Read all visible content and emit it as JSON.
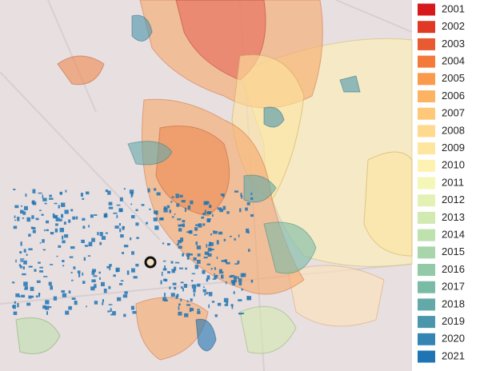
{
  "legend": [
    {
      "label": "2001",
      "color": "#d7191c"
    },
    {
      "label": "2002",
      "color": "#e03a26"
    },
    {
      "label": "2003",
      "color": "#e95a30"
    },
    {
      "label": "2004",
      "color": "#f47a3a"
    },
    {
      "label": "2005",
      "color": "#f99a4d"
    },
    {
      "label": "2006",
      "color": "#fcb463"
    },
    {
      "label": "2007",
      "color": "#fdc878"
    },
    {
      "label": "2008",
      "color": "#fed98e"
    },
    {
      "label": "2009",
      "color": "#fee6a0"
    },
    {
      "label": "2010",
      "color": "#fef2b2"
    },
    {
      "label": "2011",
      "color": "#f4f7b8"
    },
    {
      "label": "2012",
      "color": "#e4f1b5"
    },
    {
      "label": "2013",
      "color": "#d2eab1"
    },
    {
      "label": "2014",
      "color": "#bee1ad"
    },
    {
      "label": "2015",
      "color": "#a8d6aa"
    },
    {
      "label": "2016",
      "color": "#92caa7"
    },
    {
      "label": "2017",
      "color": "#7abba6"
    },
    {
      "label": "2018",
      "color": "#63a9a8"
    },
    {
      "label": "2019",
      "color": "#4b96ad"
    },
    {
      "label": "2020",
      "color": "#3485b4"
    },
    {
      "label": "2021",
      "color": "#1f74b4"
    }
  ]
}
